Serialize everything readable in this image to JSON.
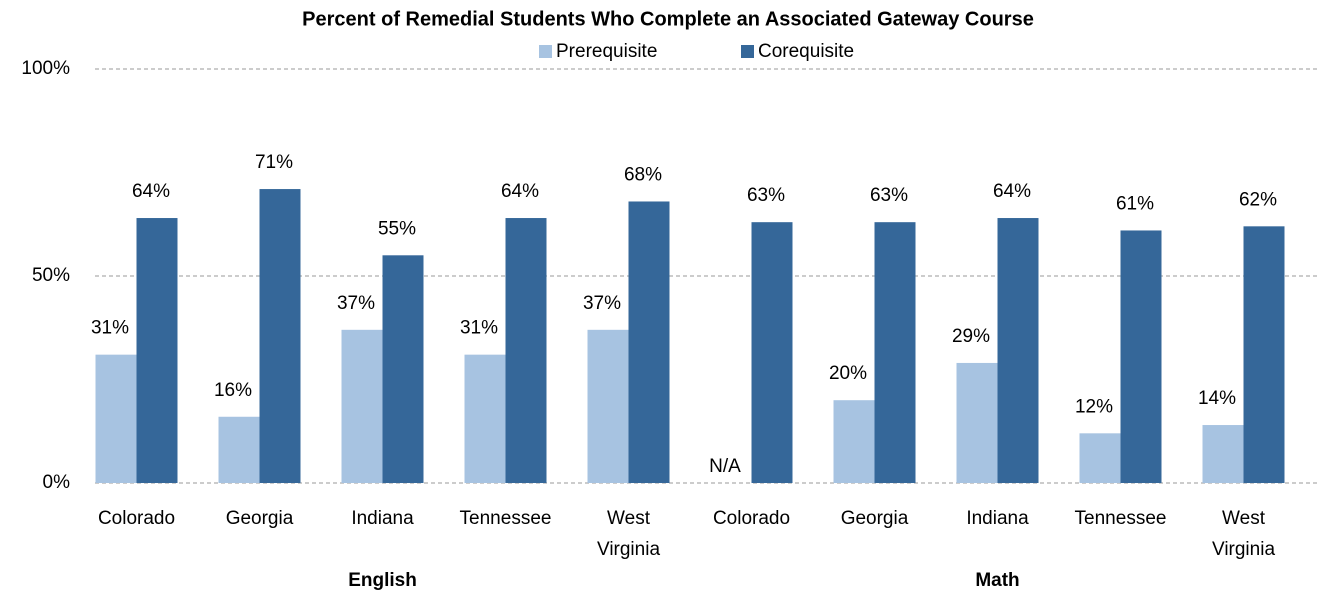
{
  "chart_data": {
    "type": "bar",
    "title": "Percent of Remedial Students Who Complete an Associated Gateway Course",
    "categories": [
      "Colorado",
      "Georgia",
      "Indiana",
      "Tennessee",
      "West Virginia",
      "Colorado",
      "Georgia",
      "Indiana",
      "Tennessee",
      "West Virginia"
    ],
    "groups": [
      "English",
      "Math"
    ],
    "series": [
      {
        "name": "Prerequisite",
        "color": "#a7c3e1",
        "values": [
          31,
          16,
          37,
          31,
          37,
          null,
          20,
          29,
          12,
          14
        ],
        "value_labels": [
          "31%",
          "16%",
          "37%",
          "31%",
          "37%",
          "N/A",
          "20%",
          "29%",
          "12%",
          "14%"
        ]
      },
      {
        "name": "Corequisite",
        "color": "#356799",
        "values": [
          64,
          71,
          55,
          64,
          68,
          63,
          63,
          64,
          61,
          62
        ],
        "value_labels": [
          "64%",
          "71%",
          "55%",
          "64%",
          "68%",
          "63%",
          "63%",
          "64%",
          "61%",
          "62%"
        ]
      }
    ],
    "ylim": [
      0,
      100
    ],
    "yticks": [
      {
        "value": 0,
        "label": "0%"
      },
      {
        "value": 50,
        "label": "50%"
      },
      {
        "value": 100,
        "label": "100%"
      }
    ],
    "grid": true,
    "legend": "top"
  }
}
